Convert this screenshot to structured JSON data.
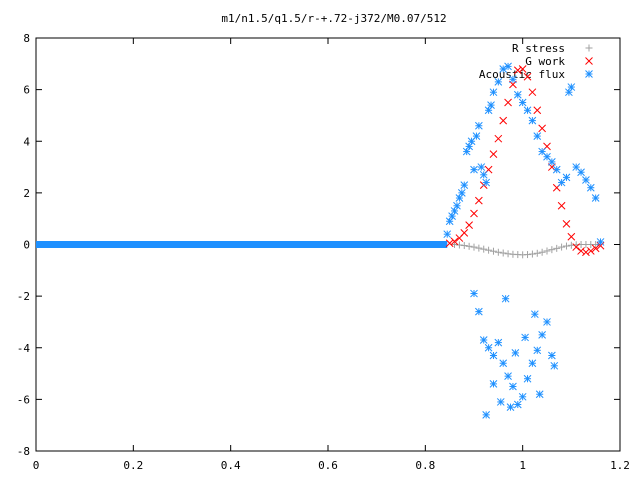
{
  "chart_data": {
    "type": "scatter",
    "title": "m1/n1.5/q1.5/r-+.72-j372/M0.07/512",
    "xlabel": "",
    "ylabel": "",
    "xlim": [
      0,
      1.2
    ],
    "ylim": [
      -8,
      8
    ],
    "x_ticks": [
      "0",
      "0.2",
      "0.4",
      "0.6",
      "0.8",
      "1",
      "1.2"
    ],
    "y_ticks": [
      "8",
      "6",
      "4",
      "2",
      "0",
      "-2",
      "-4",
      "-6",
      "-8"
    ],
    "x_tick_values": [
      0,
      0.2,
      0.4,
      0.6,
      0.8,
      1.0,
      1.2
    ],
    "y_tick_values": [
      8,
      6,
      4,
      2,
      0,
      -2,
      -4,
      -6,
      -8
    ],
    "grid": false,
    "legend_position": "top-right",
    "series": [
      {
        "name": "R stress",
        "marker": "plus",
        "color": "#a0a0a0",
        "points": [
          [
            0.86,
            0.0
          ],
          [
            0.87,
            -0.02
          ],
          [
            0.88,
            -0.04
          ],
          [
            0.89,
            -0.07
          ],
          [
            0.9,
            -0.1
          ],
          [
            0.91,
            -0.14
          ],
          [
            0.92,
            -0.18
          ],
          [
            0.93,
            -0.22
          ],
          [
            0.94,
            -0.26
          ],
          [
            0.95,
            -0.3
          ],
          [
            0.96,
            -0.33
          ],
          [
            0.97,
            -0.36
          ],
          [
            0.98,
            -0.38
          ],
          [
            0.99,
            -0.39
          ],
          [
            1.0,
            -0.4
          ],
          [
            1.01,
            -0.39
          ],
          [
            1.02,
            -0.37
          ],
          [
            1.03,
            -0.34
          ],
          [
            1.04,
            -0.3
          ],
          [
            1.05,
            -0.25
          ],
          [
            1.06,
            -0.2
          ],
          [
            1.07,
            -0.15
          ],
          [
            1.08,
            -0.1
          ],
          [
            1.09,
            -0.06
          ],
          [
            1.1,
            -0.03
          ],
          [
            1.11,
            -0.01
          ],
          [
            1.12,
            0.0
          ],
          [
            1.13,
            0.0
          ],
          [
            1.14,
            0.0
          ],
          [
            1.15,
            0.0
          ]
        ]
      },
      {
        "name": "G work",
        "marker": "cross",
        "color": "#ff0000",
        "points": [
          [
            0.85,
            0.05
          ],
          [
            0.86,
            0.12
          ],
          [
            0.87,
            0.25
          ],
          [
            0.88,
            0.45
          ],
          [
            0.89,
            0.75
          ],
          [
            0.9,
            1.2
          ],
          [
            0.91,
            1.7
          ],
          [
            0.92,
            2.3
          ],
          [
            0.93,
            2.9
          ],
          [
            0.94,
            3.5
          ],
          [
            0.95,
            4.1
          ],
          [
            0.96,
            4.8
          ],
          [
            0.97,
            5.5
          ],
          [
            0.98,
            6.2
          ],
          [
            0.99,
            6.75
          ],
          [
            1.0,
            6.8
          ],
          [
            1.01,
            6.5
          ],
          [
            1.02,
            5.9
          ],
          [
            1.03,
            5.2
          ],
          [
            1.04,
            4.5
          ],
          [
            1.05,
            3.8
          ],
          [
            1.06,
            3.0
          ],
          [
            1.07,
            2.2
          ],
          [
            1.08,
            1.5
          ],
          [
            1.09,
            0.8
          ],
          [
            1.1,
            0.3
          ],
          [
            1.11,
            -0.1
          ],
          [
            1.12,
            -0.25
          ],
          [
            1.13,
            -0.3
          ],
          [
            1.14,
            -0.25
          ],
          [
            1.15,
            -0.15
          ],
          [
            1.16,
            -0.05
          ]
        ]
      },
      {
        "name": "Acoustic flux",
        "marker": "star",
        "color": "#1e90ff",
        "points": [
          [
            0.845,
            0.4
          ],
          [
            0.85,
            0.9
          ],
          [
            0.855,
            1.1
          ],
          [
            0.86,
            1.3
          ],
          [
            0.865,
            1.5
          ],
          [
            0.87,
            1.8
          ],
          [
            0.875,
            2.0
          ],
          [
            0.88,
            2.3
          ],
          [
            0.885,
            3.6
          ],
          [
            0.89,
            3.8
          ],
          [
            0.895,
            4.0
          ],
          [
            0.9,
            2.9
          ],
          [
            0.905,
            4.2
          ],
          [
            0.91,
            4.6
          ],
          [
            0.915,
            3.0
          ],
          [
            0.92,
            2.7
          ],
          [
            0.925,
            2.4
          ],
          [
            0.93,
            5.2
          ],
          [
            0.935,
            5.4
          ],
          [
            0.94,
            5.9
          ],
          [
            0.95,
            6.3
          ],
          [
            0.96,
            6.8
          ],
          [
            0.97,
            6.9
          ],
          [
            0.98,
            6.4
          ],
          [
            0.99,
            5.8
          ],
          [
            1.0,
            5.5
          ],
          [
            1.01,
            5.2
          ],
          [
            1.02,
            4.8
          ],
          [
            1.03,
            4.2
          ],
          [
            1.04,
            3.6
          ],
          [
            1.05,
            3.4
          ],
          [
            1.06,
            3.2
          ],
          [
            1.07,
            2.9
          ],
          [
            1.08,
            2.4
          ],
          [
            1.09,
            2.6
          ],
          [
            1.095,
            5.9
          ],
          [
            1.1,
            6.1
          ],
          [
            1.11,
            3.0
          ],
          [
            1.12,
            2.8
          ],
          [
            1.13,
            2.5
          ],
          [
            1.14,
            2.2
          ],
          [
            1.15,
            1.8
          ],
          [
            1.16,
            0.1
          ],
          [
            0.9,
            -1.9
          ],
          [
            0.91,
            -2.6
          ],
          [
            0.92,
            -3.7
          ],
          [
            0.93,
            -4.0
          ],
          [
            0.94,
            -4.3
          ],
          [
            0.95,
            -3.8
          ],
          [
            0.96,
            -4.6
          ],
          [
            0.97,
            -5.1
          ],
          [
            0.98,
            -5.5
          ],
          [
            0.99,
            -6.2
          ],
          [
            1.0,
            -5.9
          ],
          [
            1.01,
            -5.2
          ],
          [
            1.02,
            -4.6
          ],
          [
            1.03,
            -4.1
          ],
          [
            1.04,
            -3.5
          ],
          [
            1.05,
            -3.0
          ],
          [
            1.06,
            -4.3
          ],
          [
            1.065,
            -4.7
          ],
          [
            0.925,
            -6.6
          ],
          [
            0.94,
            -5.4
          ],
          [
            0.955,
            -6.1
          ],
          [
            0.975,
            -6.3
          ],
          [
            0.985,
            -4.2
          ],
          [
            1.005,
            -3.6
          ],
          [
            1.025,
            -2.7
          ],
          [
            1.035,
            -5.8
          ],
          [
            0.965,
            -2.1
          ]
        ]
      }
    ]
  }
}
